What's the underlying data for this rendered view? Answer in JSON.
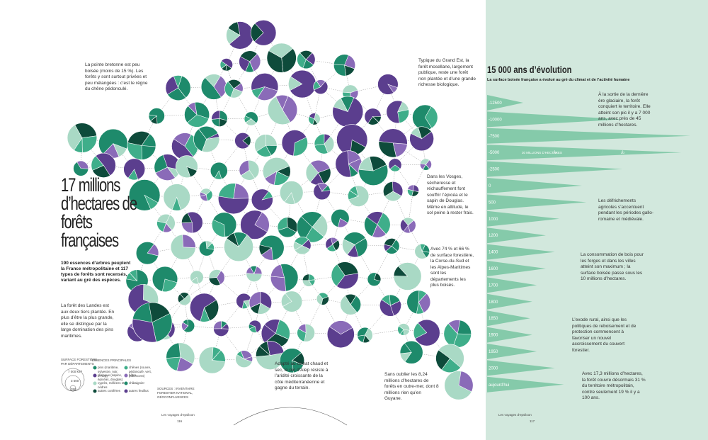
{
  "left_page": {
    "title": "17 millions d’hectares de forêts françaises",
    "subtitle": "190 essences d’arbres peuplent la France métropolitaine et 117 types de forêts sont recensés, variant au gré des espèces.",
    "notes": {
      "bretagne": "La pointe bretonne est peu boisée (moins de 15 %). Les forêts y sont surtout privées et peu mélangées : c’est le règne du chêne pédonculé.",
      "landes": "La forêt des Landes est aux deux tiers plantée. En plus d’être la plus grande, elle se distingue par la large domination des pins maritimes.",
      "moselle": "Typique du Grand Est, la forêt mosellane, largement publique, reste une forêt non plantée et d’une grande richesse biologique.",
      "vosges": "Dans les Vosges, sécheresse et réchauffement font souffrir l’épicéa et le sapin de Douglas. Même en altitude, le sol peine à rester frais.",
      "corse": "Avec 74 % et 66 % de surface forestière, la Corse-du-Sud et les Alpes-Maritimes sont les départements les plus boisés.",
      "alep": "Adapté au climat chaud et sec, le pin d’Alep résiste à l’aridité croissante de la côte méditerranéenne et gagne du terrain.",
      "outremer": "Sans oublier les 8,24 millions d’hectares de forêts en outre-mer, dont 8 millions rien qu’en Guyane."
    },
    "legend": {
      "size_title": "SURFACE FORESTIÈRE PAR DÉPARTEMENTS",
      "sizes": [
        "7 000 km²",
        "3 500",
        "350"
      ],
      "species_title": "ESSENCES PRINCIPALES",
      "species": [
        "pins (maritime, sylvestre, noir, d’Alep)",
        "résineux (sapins, épicéas, douglas)",
        "cyprès, mélèzes et cèdres",
        "autres conifères",
        "chênes (rouvre, pédonculé, vert, pubescent)",
        "hêtre",
        "châtaignier",
        "autres feuillus"
      ],
      "sources": "SOURCES : INVENTAIRE FORESTIER NATIONAL, GÉOCONFLUENCES"
    },
    "footer": "Les voyages d’epsiloon",
    "page_number": "116"
  },
  "right_page": {
    "title": "15 000 ans d’évolution",
    "subtitle": "La surface boisée française a évolué au gré du climat et de l’activité humaine",
    "timeline": {
      "categories": [
        "-12500",
        "-10000",
        "-7500",
        "-5000",
        "-2500",
        "0",
        "500",
        "1000",
        "1200",
        "1400",
        "1600",
        "1700",
        "1800",
        "1850",
        "1900",
        "1950",
        "2000",
        "aujourd’hui"
      ],
      "values": [
        8,
        30,
        45,
        43,
        30,
        21,
        22,
        16,
        13,
        15,
        13,
        11,
        10,
        9.5,
        10,
        11,
        15,
        17
      ],
      "color": "#7cc7a4",
      "xlim": [
        0,
        45
      ],
      "scale_label": "30 MILLIONS D’HECTARES",
      "xticks": [
        15,
        30
      ]
    },
    "notes": [
      "À la sortie de la dernière ère glaciaire, la forêt conquiert le territoire. Elle atteint son pic il y a 7 000 ans, avec près de 45 millions d’hectares.",
      "Les défrichements agricoles s’accentuent pendant les périodes gallo-romaine et médiévale.",
      "La consommation de bois pour les forges et dans les villes atteint son maximum ; la surface boisée passe sous les 10 millions d’hectares.",
      "L’exode rural, ainsi que les politiques de reboisement et de protection commencent à favoriser un nouvel accroissement du couvert forestier.",
      "Avec 17,3 millions d’hectares, la forêt couvre désormais 31 % du territoire métropolitain, contre seulement 19 % il y a 100 ans."
    ],
    "footer": "Les voyages d’epsiloon",
    "page_number": "117"
  }
}
